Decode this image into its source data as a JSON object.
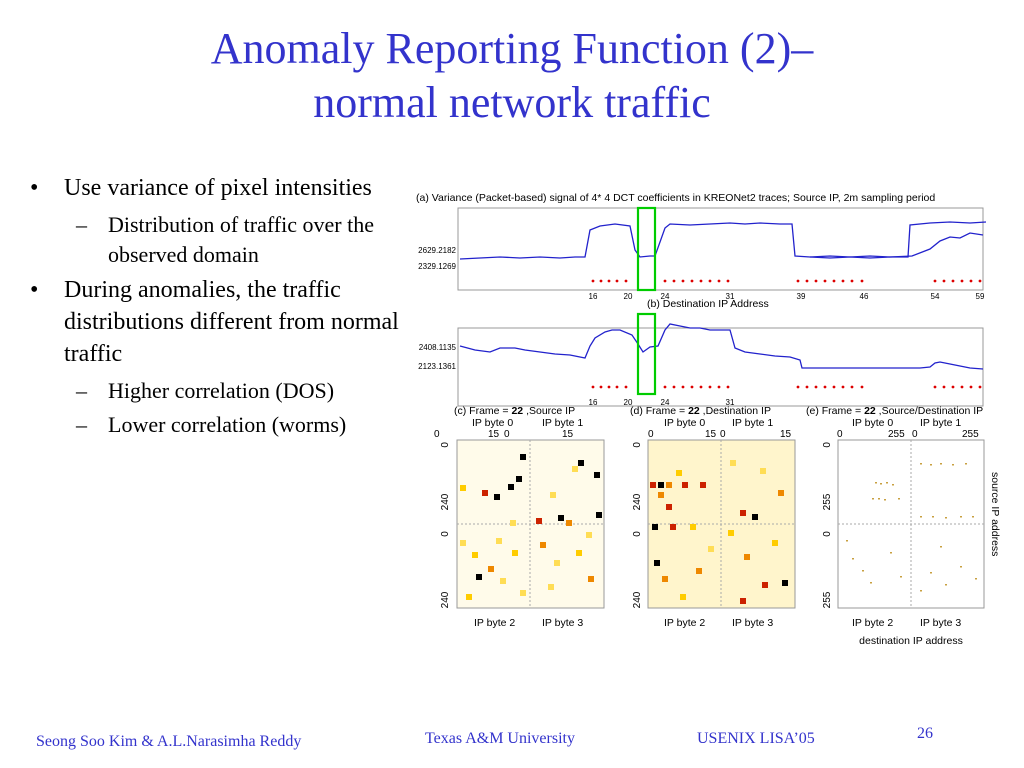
{
  "title": {
    "line1": "Anomaly Reporting Function (2)–",
    "line2": "normal network traffic"
  },
  "bullets": [
    {
      "text": "Use variance of pixel intensities",
      "sub": [
        "Distribution of traffic over the observed domain"
      ]
    },
    {
      "text": "During anomalies, the traffic distributions different from normal traffic",
      "sub": [
        "Higher correlation (DOS)",
        "Lower correlation (worms)"
      ]
    }
  ],
  "figure": {
    "panel_a": {
      "title": "(a) Variance (Packet-based) signal of 4* 4 DCT coefficients in KREONet2 traces; Source IP, 2m sampling period",
      "ytick_hi": "2629.2182",
      "ytick_lo": "2329.1269"
    },
    "panel_b": {
      "title": "(b) Destination IP Address",
      "ytick_hi": "2408.1135",
      "ytick_lo": "2123.1361"
    },
    "x_ticks": [
      "16",
      "20",
      "24",
      "31",
      "39",
      "46",
      "54",
      "59"
    ],
    "panel_c": {
      "title_pre": "(c) Frame = ",
      "frame": "22",
      "title_post": " ,Source IP",
      "top_labels": [
        "IP byte 0",
        "IP byte 1"
      ],
      "top_ticks": [
        "0",
        "15",
        "0",
        "15"
      ],
      "side_ticks": [
        "0",
        "240",
        "0",
        "240"
      ],
      "bottom_labels": [
        "IP byte 2",
        "IP byte 3"
      ]
    },
    "panel_d": {
      "title_pre": "(d) Frame = ",
      "frame": "22",
      "title_post": " ,Destination IP",
      "top_labels": [
        "IP byte 0",
        "IP byte 1"
      ],
      "top_ticks": [
        "0",
        "15",
        "0",
        "15"
      ],
      "side_ticks": [
        "0",
        "240",
        "0",
        "240"
      ],
      "bottom_labels": [
        "IP byte 2",
        "IP byte 3"
      ]
    },
    "panel_e": {
      "title_pre": "(e) Frame = ",
      "frame": "22",
      "title_post": " ,Source/Destination IP",
      "top_labels": [
        "IP byte 0",
        "IP byte 1"
      ],
      "top_ticks": [
        "0",
        "255",
        "0",
        "255"
      ],
      "side_ticks": [
        "0",
        "255",
        "0",
        "255"
      ],
      "bottom_labels": [
        "IP byte 2",
        "IP byte 3"
      ],
      "xlabel": "destination IP address",
      "ylabel": "source IP address"
    },
    "colors": {
      "signal": "#2222cc",
      "marker": "#dd0000",
      "highlight": "#00cc00"
    }
  },
  "footer": {
    "authors": "Seong Soo Kim & A.L.Narasimha Reddy",
    "university": "Texas A&M University",
    "conference": "USENIX LISA’05",
    "page": "26"
  }
}
